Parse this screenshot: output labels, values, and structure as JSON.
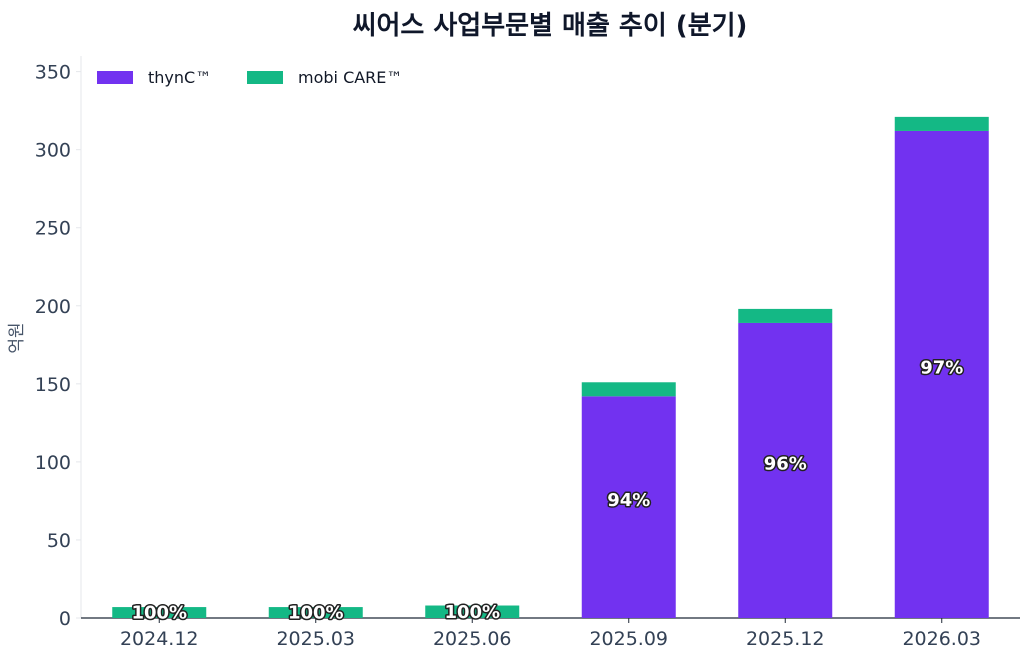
{
  "chart_data": {
    "type": "bar",
    "stacked": true,
    "title": "씨어스 사업부문별 매출 추이 (분기)",
    "ylabel": "억원",
    "xlabel": "",
    "categories": [
      "2024.12",
      "2025.03",
      "2025.06",
      "2025.09",
      "2025.12",
      "2026.03"
    ],
    "series": [
      {
        "name": "thynC™",
        "color": "#7232f0",
        "values": [
          0,
          0,
          0,
          142,
          189,
          312
        ]
      },
      {
        "name": "mobi CARE™",
        "color": "#14b885",
        "values": [
          7,
          7,
          8,
          9,
          9,
          9
        ]
      }
    ],
    "share_labels": [
      "100%",
      "100%",
      "100%",
      "94%",
      "96%",
      "97%"
    ],
    "ylim": [
      0,
      360
    ],
    "yticks": [
      0,
      50,
      100,
      150,
      200,
      250,
      300,
      350
    ],
    "legend_position": "top-left",
    "grid": false
  }
}
